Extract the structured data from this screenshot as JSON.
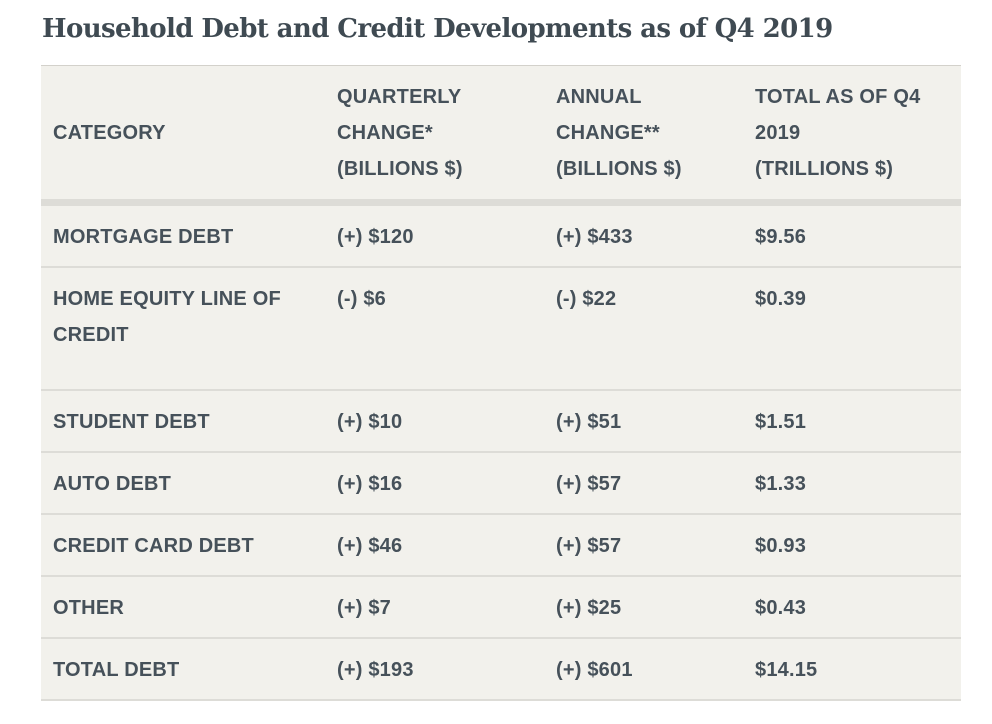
{
  "title": "Household Debt and Credit Developments as of Q4 2019",
  "table": {
    "headers": [
      [
        "CATEGORY"
      ],
      [
        "QUARTERLY",
        "CHANGE*",
        "(BILLIONS $)"
      ],
      [
        "ANNUAL",
        "CHANGE**",
        "(BILLIONS $)"
      ],
      [
        "TOTAL AS OF Q4",
        "2019",
        "(TRILLIONS $)"
      ]
    ],
    "rows": [
      {
        "category": "MORTGAGE DEBT",
        "quarterly": "(+) $120",
        "annual": "(+) $433",
        "total": "$9.56"
      },
      {
        "category": "HOME EQUITY LINE OF CREDIT",
        "quarterly": "(-) $6",
        "annual": "(-) $22",
        "total": "$0.39"
      },
      {
        "category": "STUDENT DEBT",
        "quarterly": "(+) $10",
        "annual": "(+) $51",
        "total": "$1.51"
      },
      {
        "category": "AUTO DEBT",
        "quarterly": "(+) $16",
        "annual": "(+) $57",
        "total": "$1.33"
      },
      {
        "category": "CREDIT CARD DEBT",
        "quarterly": "(+) $46",
        "annual": "(+) $57",
        "total": "$0.93"
      },
      {
        "category": "OTHER",
        "quarterly": "(+) $7",
        "annual": "(+) $25",
        "total": "$0.43"
      },
      {
        "category": "TOTAL DEBT",
        "quarterly": "(+) $193",
        "annual": "(+) $601",
        "total": "$14.15"
      }
    ]
  },
  "colors": {
    "text": "#3f4a52",
    "table_background": "#f2f1ec",
    "rule": "#dddcd7"
  }
}
